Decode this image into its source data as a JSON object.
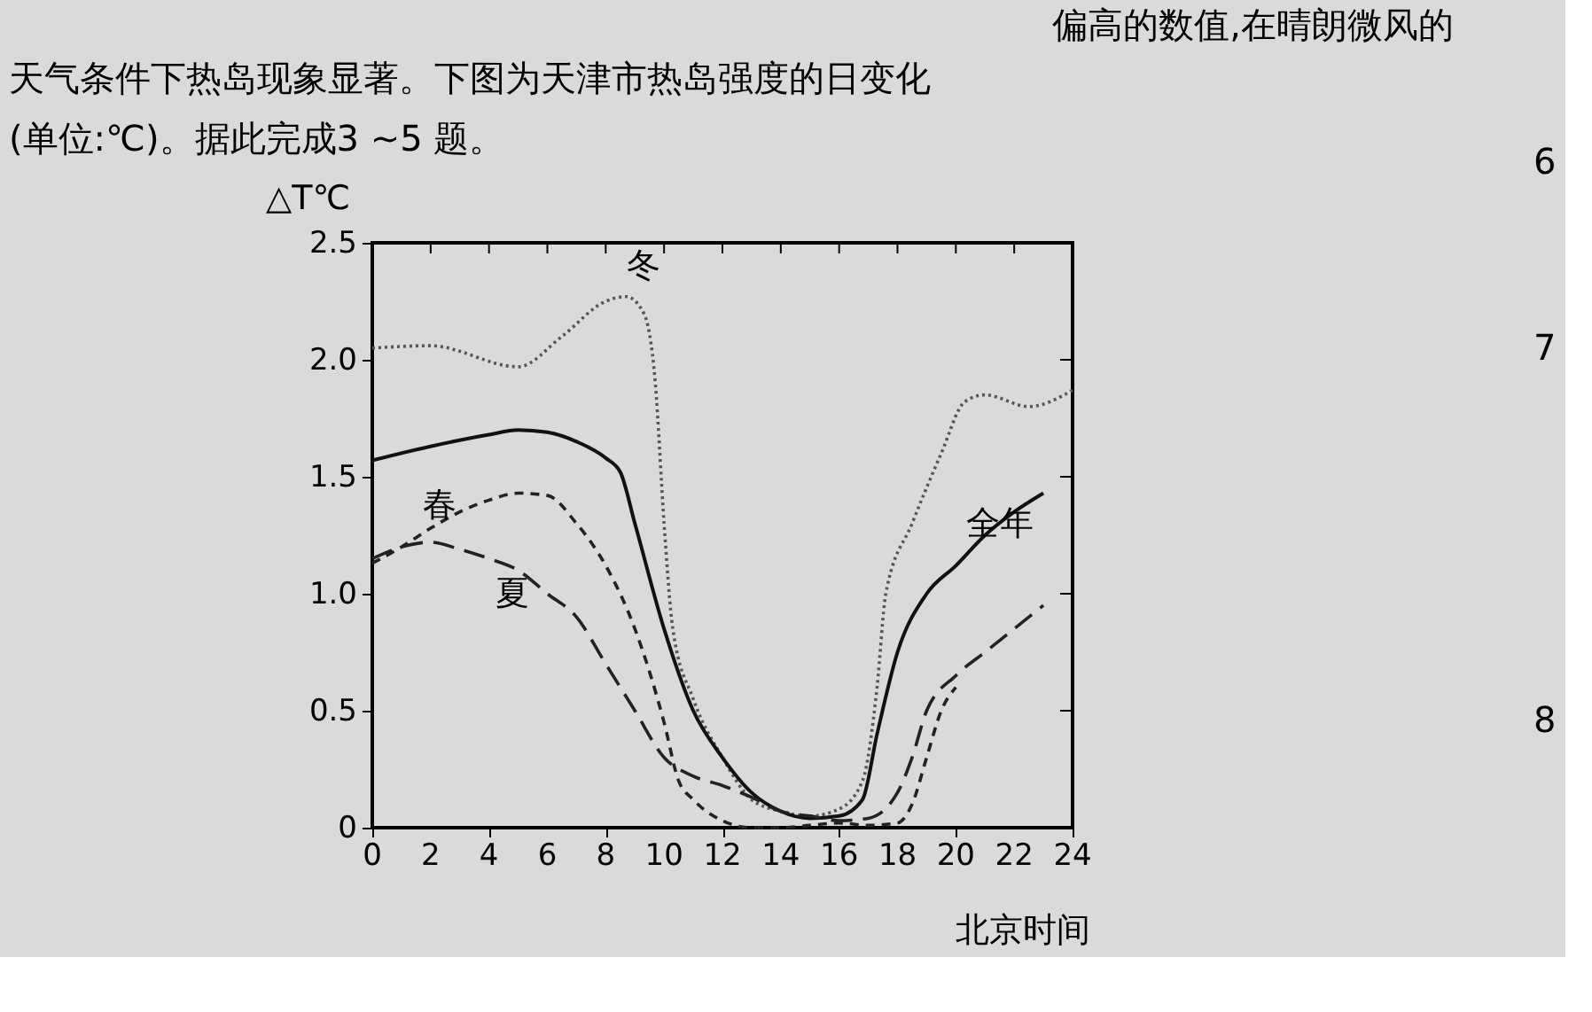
{
  "chart_data": {
    "type": "line",
    "xlabel": "北京时间",
    "ylabel": "△T℃",
    "xlim": [
      0,
      24
    ],
    "xticks": [
      0,
      2,
      4,
      6,
      8,
      10,
      12,
      14,
      16,
      18,
      20,
      22,
      24
    ],
    "ylim": [
      0,
      2.5
    ],
    "yticks": [
      0,
      {
        "value": 0.5,
        "label": "0.5"
      },
      {
        "value": 1,
        "label": "1.0"
      },
      {
        "value": 1.5,
        "label": "1.5"
      },
      {
        "value": 2,
        "label": "2.0"
      },
      {
        "value": 2.5,
        "label": "2.5"
      }
    ],
    "grid": false,
    "legend": false,
    "annotations": [
      "偏高的数值,在晴朗微风的",
      "天气条件下热岛现象显著。下图为天津市热岛强度的日变化",
      "(单位:℃)。据此完成3 ~5 题。",
      "6",
      "7",
      "8"
    ],
    "series": [
      {
        "name": "冬",
        "color": "#555555",
        "line_style": "dotted",
        "x": [
          0,
          2,
          5,
          6.5,
          8,
          8.7,
          9.3,
          9.7,
          10,
          10.3,
          11,
          12,
          13,
          14,
          15,
          16,
          16.8,
          17.3,
          17.6,
          18.5,
          19.5,
          20.3,
          21,
          22.5,
          24
        ],
        "values": [
          2.05,
          2.06,
          1.97,
          2.1,
          2.25,
          2.27,
          2.2,
          1.9,
          1.3,
          0.85,
          0.55,
          0.3,
          0.12,
          0.07,
          0.05,
          0.08,
          0.2,
          0.6,
          1.0,
          1.3,
          1.6,
          1.82,
          1.85,
          1.8,
          1.87
        ]
      },
      {
        "name": "全年",
        "color": "#111111",
        "line_style": "solid",
        "x": [
          0,
          2,
          4,
          5,
          6,
          7,
          8,
          8.5,
          9,
          10,
          11,
          12,
          13,
          14,
          15,
          16,
          16.8,
          17.3,
          18,
          19,
          20,
          21,
          22,
          23
        ],
        "values": [
          1.57,
          1.63,
          1.68,
          1.7,
          1.69,
          1.65,
          1.58,
          1.52,
          1.3,
          0.85,
          0.5,
          0.3,
          0.15,
          0.07,
          0.04,
          0.05,
          0.12,
          0.4,
          0.75,
          1.0,
          1.12,
          1.25,
          1.35,
          1.43
        ]
      },
      {
        "name": "春",
        "color": "#222222",
        "line_style": "dashed",
        "x": [
          0,
          1,
          2,
          3,
          4,
          5,
          6,
          7,
          8,
          9,
          10,
          10.5,
          11,
          12,
          13,
          14,
          15,
          16,
          17,
          18,
          18.5,
          19,
          19.5,
          20
        ],
        "values": [
          1.13,
          1.2,
          1.28,
          1.35,
          1.4,
          1.43,
          1.42,
          1.3,
          1.12,
          0.85,
          0.45,
          0.2,
          0.12,
          0.03,
          0.0,
          0.0,
          0.01,
          0.02,
          0.01,
          0.02,
          0.1,
          0.3,
          0.5,
          0.6
        ]
      },
      {
        "name": "夏",
        "color": "#222222",
        "line_style": "dashed",
        "x": [
          0,
          1,
          2,
          3,
          4,
          5,
          6,
          7,
          8,
          9,
          10,
          11,
          12,
          13,
          14,
          15,
          16,
          17,
          18,
          18.5,
          19,
          20,
          21,
          22,
          23
        ],
        "values": [
          1.15,
          1.2,
          1.22,
          1.19,
          1.15,
          1.1,
          1.0,
          0.9,
          0.7,
          0.5,
          0.3,
          0.22,
          0.18,
          0.13,
          0.07,
          0.05,
          0.03,
          0.04,
          0.15,
          0.3,
          0.5,
          0.65,
          0.75,
          0.85,
          0.95
        ]
      }
    ]
  }
}
